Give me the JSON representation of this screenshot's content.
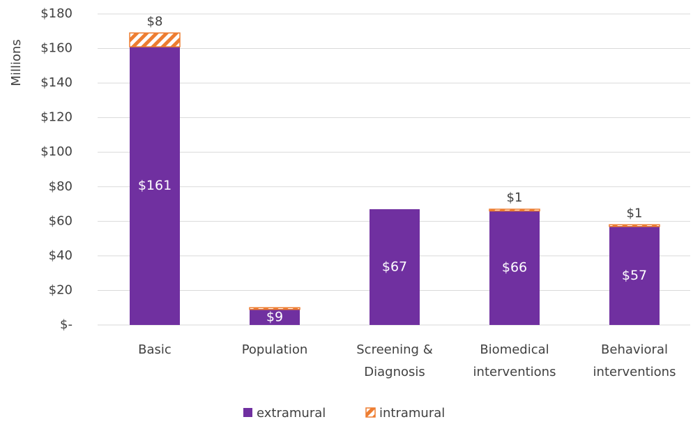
{
  "chart_data": {
    "type": "stacked_bar",
    "y_axis_label": "Millions",
    "categories": [
      [
        "Basic"
      ],
      [
        "Population"
      ],
      [
        "Screening &",
        "Diagnosis"
      ],
      [
        "Biomedical",
        "interventions"
      ],
      [
        "Behavioral",
        "interventions"
      ]
    ],
    "series": [
      {
        "name": "extramural",
        "color": "#7030a0",
        "pattern": "solid",
        "values": [
          161,
          9,
          67,
          66,
          57
        ],
        "value_labels": [
          "$161",
          "$9",
          "$67",
          "$66",
          "$57"
        ]
      },
      {
        "name": "intramural",
        "color": "#ed7d31",
        "pattern": "hatch",
        "values": [
          8,
          1,
          0,
          1,
          1
        ],
        "value_labels": [
          "$8",
          null,
          null,
          "$1",
          "$1"
        ]
      }
    ],
    "ylim": [
      0,
      180
    ],
    "yticks": [
      {
        "value": 0,
        "label": "$-"
      },
      {
        "value": 20,
        "label": "$20"
      },
      {
        "value": 40,
        "label": "$40"
      },
      {
        "value": 60,
        "label": "$60"
      },
      {
        "value": 80,
        "label": "$80"
      },
      {
        "value": 100,
        "label": "$100"
      },
      {
        "value": 120,
        "label": "$120"
      },
      {
        "value": 140,
        "label": "$140"
      },
      {
        "value": 160,
        "label": "$160"
      },
      {
        "value": 180,
        "label": "$180"
      }
    ],
    "grid": true,
    "legend": "bottom"
  }
}
